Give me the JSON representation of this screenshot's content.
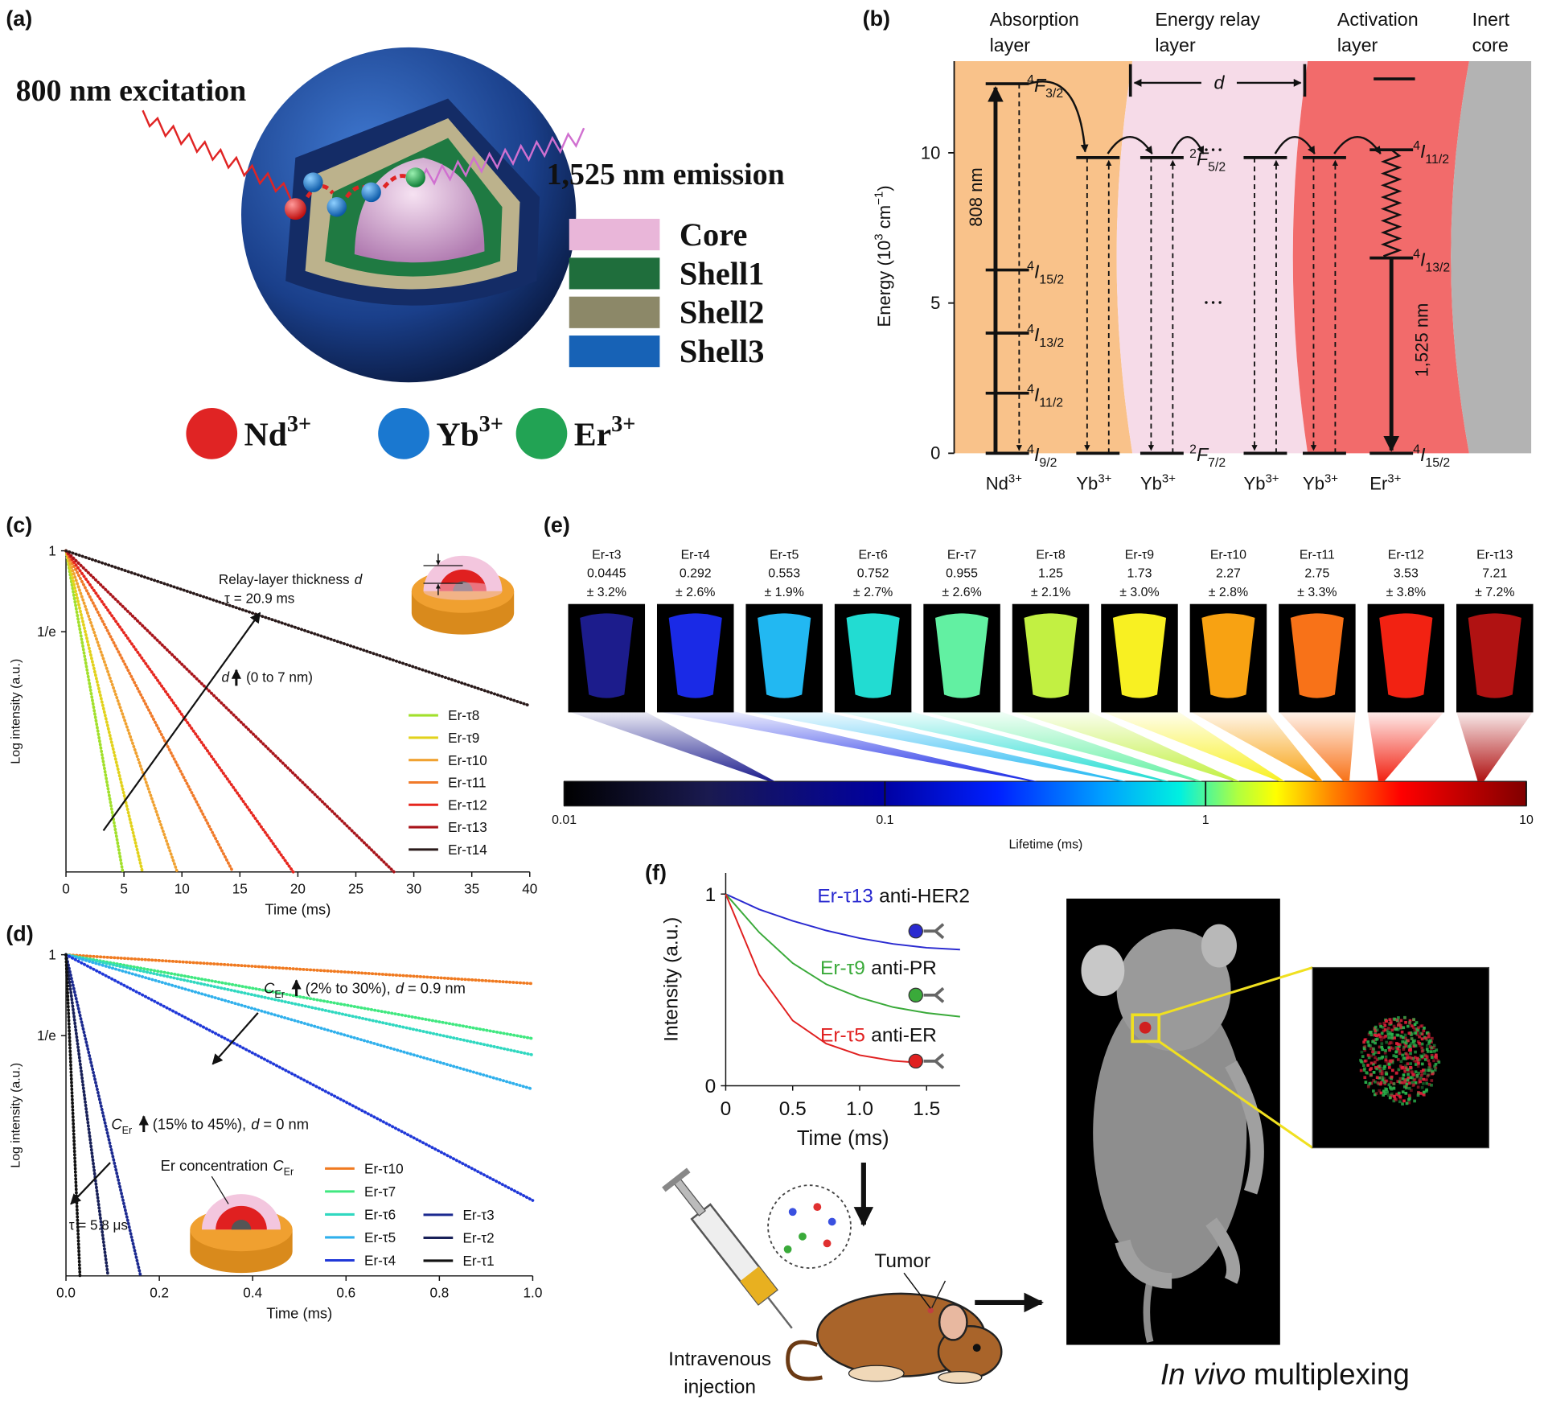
{
  "panel_labels": [
    "(a)",
    "(b)",
    "(c)",
    "(d)",
    "(e)",
    "(f)"
  ],
  "panel_a": {
    "excitation": "800 nm excitation",
    "emission": "1,525 nm emission",
    "layers": [
      {
        "name": "Core",
        "color": "#e9b6d9"
      },
      {
        "name": "Shell1",
        "color": "#1f6e3c"
      },
      {
        "name": "Shell2",
        "color": "#8c8868"
      },
      {
        "name": "Shell3",
        "color": "#1762b6"
      }
    ],
    "ions": [
      {
        "symbol": "Nd",
        "charge": "3+",
        "color": "#e02424"
      },
      {
        "symbol": "Yb",
        "charge": "3+",
        "color": "#1a78d0"
      },
      {
        "symbol": "Er",
        "charge": "3+",
        "color": "#22a354"
      }
    ]
  },
  "panel_b": {
    "ylabel": {
      "text": "Energy (10",
      "sup": "3",
      "unit": " cm",
      "unit_sup": "−1",
      "close": ")"
    },
    "ylim": [
      0,
      13.05
    ],
    "yticks": [
      0,
      5,
      10
    ],
    "layers": [
      {
        "lines": [
          "Absorption",
          "layer"
        ],
        "color": "#f9c28a"
      },
      {
        "lines": [
          "Energy relay",
          "layer"
        ],
        "color": "#f6dbe8"
      },
      {
        "lines": [
          "Activation",
          "layer"
        ],
        "color": "#f26b6b"
      },
      {
        "lines": [
          "Inert",
          "core"
        ],
        "color": "#b3b3b3"
      }
    ],
    "ions": [
      {
        "symbol": "Nd",
        "charge": "3+",
        "color": "#222222"
      },
      {
        "symbol": "Yb",
        "charge": "3+",
        "color": "#222222"
      },
      {
        "symbol": "Yb",
        "charge": "3+",
        "color": "#222222"
      },
      {
        "symbol": "Yb",
        "charge": "3+",
        "color": "#222222"
      },
      {
        "symbol": "Yb",
        "charge": "3+",
        "color": "#222222"
      },
      {
        "symbol": "Er",
        "charge": "3+",
        "color": "#e02020"
      }
    ],
    "levels": [
      {
        "ion": 0,
        "energy": 0,
        "sup": "4",
        "term": "I",
        "sub": "9/2"
      },
      {
        "ion": 0,
        "energy": 2.0,
        "sup": "4",
        "term": "I",
        "sub": "11/2"
      },
      {
        "ion": 0,
        "energy": 4.0,
        "sup": "4",
        "term": "I",
        "sub": "13/2"
      },
      {
        "ion": 0,
        "energy": 6.1,
        "sup": "4",
        "term": "I",
        "sub": "15/2"
      },
      {
        "ion": 0,
        "energy": 12.3,
        "sup": "4",
        "term": "F",
        "sub": "3/2"
      },
      {
        "ion": 1,
        "energy": 9.84
      },
      {
        "ion": 1,
        "energy": 0
      },
      {
        "ion": 2,
        "energy": 9.84,
        "sup": "2",
        "term": "F",
        "sub": "5/2"
      },
      {
        "ion": 2,
        "energy": 0,
        "sup": "2",
        "term": "F",
        "sub": "7/2"
      },
      {
        "ion": 3,
        "energy": 9.84
      },
      {
        "ion": 3,
        "energy": 0
      },
      {
        "ion": 4,
        "energy": 9.84
      },
      {
        "ion": 4,
        "energy": 0
      },
      {
        "ion": 5,
        "energy": 10.1,
        "sup": "4",
        "term": "I",
        "sub": "11/2"
      },
      {
        "ion": 5,
        "energy": 6.5,
        "sup": "4",
        "term": "I",
        "sub": "13/2"
      },
      {
        "ion": 5,
        "energy": 0,
        "sup": "4",
        "term": "I",
        "sub": "15/2"
      }
    ],
    "excitation": "808 nm",
    "emission": "1,525 nm",
    "distance": "d"
  },
  "chart_data": [
    {
      "type": "line",
      "log_y": true,
      "xlabel": "Time (ms)",
      "ylabel": "Log intensity (a.u.)",
      "xlim": [
        0,
        40
      ],
      "ylim": [
        0.0189,
        1
      ],
      "xticks": [
        0,
        5,
        10,
        15,
        20,
        25,
        30,
        35,
        40
      ],
      "yticks": [
        1,
        {
          "value": 0.3679,
          "label": "1/e"
        }
      ],
      "series": [
        {
          "name": "Er-τ8",
          "color": "#a2e02c",
          "x": [
            0,
            4.9
          ],
          "values": [
            1,
            0.0189
          ]
        },
        {
          "name": "Er-τ9",
          "color": "#e2d21c",
          "x": [
            0,
            6.6
          ],
          "values": [
            1,
            0.0189
          ]
        },
        {
          "name": "Er-τ10",
          "color": "#f0a232",
          "x": [
            0,
            9.6
          ],
          "values": [
            1,
            0.0189
          ]
        },
        {
          "name": "Er-τ11",
          "color": "#f07a2a",
          "x": [
            0,
            14.4
          ],
          "values": [
            1,
            0.0189
          ]
        },
        {
          "name": "Er-τ12",
          "color": "#e6261e",
          "x": [
            0,
            19.6
          ],
          "values": [
            1,
            0.0189
          ]
        },
        {
          "name": "Er-τ13",
          "color": "#a8141a",
          "x": [
            0,
            28.3
          ],
          "values": [
            1,
            0.0189
          ]
        },
        {
          "name": "Er-τ14",
          "color": "#2a1a1a",
          "x": [
            0,
            40
          ],
          "values": [
            1,
            0.1475
          ]
        }
      ],
      "annotations": {
        "thickness": {
          "text": "Relay-layer thickness",
          "var": "d"
        },
        "tau": "τ = 20.9 ms",
        "trend": {
          "var": "d",
          "text": "(0 to 7 nm)"
        }
      }
    },
    {
      "type": "line",
      "log_y": true,
      "xlabel": "Time (ms)",
      "ylabel": "Log intensity (a.u.)",
      "xlim": [
        0,
        1
      ],
      "ylim": [
        0.0189,
        1
      ],
      "xticks": [
        {
          "value": 0,
          "label": "0.0"
        },
        0.2,
        0.4,
        0.6,
        0.8,
        {
          "value": 1,
          "label": "1.0"
        }
      ],
      "yticks": [
        1,
        {
          "value": 0.3679,
          "label": "1/e"
        }
      ],
      "series": [
        {
          "name": "Er-τ10",
          "color": "#f07a20",
          "x": [
            0,
            1
          ],
          "values": [
            1,
            0.7
          ]
        },
        {
          "name": "Er-τ7",
          "color": "#40e880",
          "x": [
            0,
            1
          ],
          "values": [
            1,
            0.355
          ]
        },
        {
          "name": "Er-τ6",
          "color": "#30d8c0",
          "x": [
            0,
            1
          ],
          "values": [
            1,
            0.29
          ]
        },
        {
          "name": "Er-τ5",
          "color": "#30b0ec",
          "x": [
            0,
            1
          ],
          "values": [
            1,
            0.19
          ]
        },
        {
          "name": "Er-τ4",
          "color": "#2038d8",
          "x": [
            0,
            1
          ],
          "values": [
            1,
            0.048
          ]
        },
        {
          "name": "Er-τ3",
          "color": "#1c2a90",
          "x": [
            0,
            0.16
          ],
          "values": [
            1,
            0.0189
          ]
        },
        {
          "name": "Er-τ2",
          "color": "#182058",
          "x": [
            0,
            0.09
          ],
          "values": [
            1,
            0.0189
          ]
        },
        {
          "name": "Er-τ1",
          "color": "#111111",
          "x": [
            0,
            0.03
          ],
          "values": [
            1,
            0.0189
          ]
        }
      ],
      "annotations": {
        "high": {
          "sym": "C",
          "sub": "Er",
          "text": "(2% to 30%),",
          "var": "d",
          "value": "= 0.9 nm"
        },
        "low": {
          "sym": "C",
          "sub": "Er",
          "text": "(15% to 45%),",
          "var": "d",
          "value": "= 0 nm"
        },
        "concentration": {
          "text": "Er concentration",
          "sym": "C",
          "sub": "Er"
        },
        "tau": "τ = 5.8 μs"
      }
    },
    {
      "type": "line",
      "log_y": false,
      "xlabel": "Time (ms)",
      "ylabel": "Intensity (a.u.)",
      "xlim": [
        0,
        1.75
      ],
      "ylim": [
        0,
        1.11
      ],
      "xticks": [
        0,
        0.5,
        {
          "value": 1,
          "label": "1.0"
        },
        1.5
      ],
      "yticks": [
        0,
        1
      ],
      "series": [
        {
          "name": "Er-τ13",
          "label": "anti-HER2",
          "color": "#2a2ad0",
          "x": [
            0,
            0.25,
            0.5,
            0.75,
            1.0,
            1.25,
            1.5,
            1.75
          ],
          "values": [
            1,
            0.92,
            0.86,
            0.81,
            0.77,
            0.74,
            0.72,
            0.71
          ]
        },
        {
          "name": "Er-τ9",
          "label": "anti-PR",
          "color": "#3aaa3a",
          "x": [
            0,
            0.25,
            0.5,
            0.75,
            1.0,
            1.25,
            1.5,
            1.75
          ],
          "values": [
            1,
            0.8,
            0.64,
            0.53,
            0.46,
            0.41,
            0.38,
            0.36
          ]
        },
        {
          "name": "Er-τ5",
          "label": "anti-ER",
          "color": "#e02020",
          "x": [
            0,
            0.25,
            0.5,
            0.75,
            1.0,
            1.25,
            1.45
          ],
          "values": [
            1,
            0.58,
            0.34,
            0.22,
            0.16,
            0.13,
            0.12
          ]
        }
      ]
    }
  ],
  "panel_e": {
    "log": true,
    "lim": [
      0.01,
      10
    ],
    "ticks": [
      0.01,
      0.1,
      1,
      10
    ],
    "label": "Lifetime (ms)",
    "samples": [
      {
        "name": "Er-τ3",
        "lifetime": 0.0445,
        "error": "± 3.2%",
        "color": "#1c1c8c"
      },
      {
        "name": "Er-τ4",
        "lifetime": 0.292,
        "error": "± 2.6%",
        "color": "#1a2ae6"
      },
      {
        "name": "Er-τ5",
        "lifetime": 0.553,
        "error": "± 1.9%",
        "color": "#22b8f2"
      },
      {
        "name": "Er-τ6",
        "lifetime": 0.752,
        "error": "± 2.7%",
        "color": "#22dcd2"
      },
      {
        "name": "Er-τ7",
        "lifetime": 0.955,
        "error": "± 2.6%",
        "color": "#62f0a2"
      },
      {
        "name": "Er-τ8",
        "lifetime": 1.25,
        "error": "± 2.1%",
        "color": "#c2f042"
      },
      {
        "name": "Er-τ9",
        "lifetime": 1.73,
        "error": "± 3.0%",
        "color": "#f8f022"
      },
      {
        "name": "Er-τ10",
        "lifetime": 2.27,
        "error": "± 2.8%",
        "color": "#f8a212"
      },
      {
        "name": "Er-τ11",
        "lifetime": 2.75,
        "error": "± 3.3%",
        "color": "#f87218"
      },
      {
        "name": "Er-τ12",
        "lifetime": 3.53,
        "error": "± 3.8%",
        "color": "#f22212"
      },
      {
        "name": "Er-τ13",
        "lifetime": 7.21,
        "error": "± 7.2%",
        "color": "#b01212"
      }
    ]
  },
  "panel_f_scheme": {
    "tumor": "Tumor",
    "injection": [
      "Intravenous",
      "injection"
    ],
    "caption_italic": "In vivo",
    "caption": "multiplexing"
  }
}
